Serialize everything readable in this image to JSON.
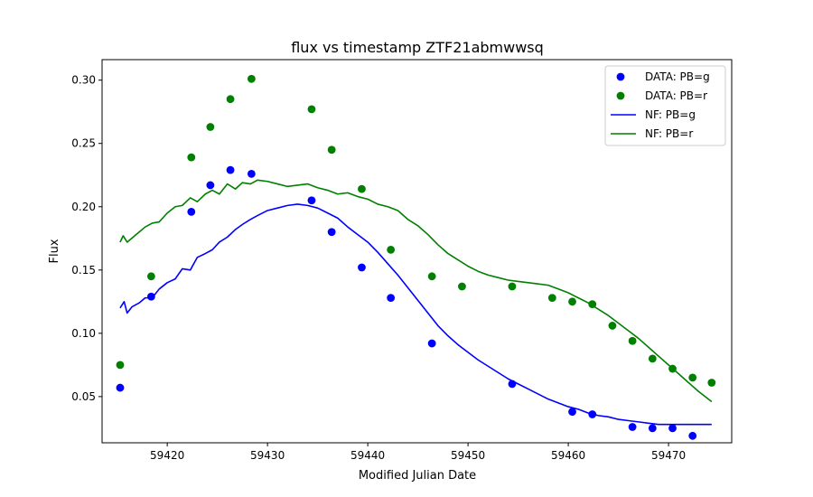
{
  "chart_data": {
    "type": "scatter",
    "title": "flux vs timestamp ZTF21abmwwsq",
    "xlabel": "Modified Julian Date",
    "ylabel": "Flux",
    "xlim": [
      59413.5,
      59476.3
    ],
    "ylim": [
      0.0135,
      0.3162
    ],
    "x_ticks": [
      59420,
      59430,
      59440,
      59450,
      59460,
      59470
    ],
    "y_ticks": [
      0.05,
      0.1,
      0.15,
      0.2,
      0.25,
      0.3
    ],
    "grid": false,
    "legend_position": "top-right",
    "colors": {
      "g": "#0000ff",
      "r": "#008000"
    },
    "legend": [
      {
        "label": "DATA: PB=g",
        "kind": "marker",
        "color": "#0000ff"
      },
      {
        "label": "DATA: PB=r",
        "kind": "marker",
        "color": "#008000"
      },
      {
        "label": "NF: PB=g",
        "kind": "line",
        "color": "#0000ff"
      },
      {
        "label": "NF: PB=r",
        "kind": "line",
        "color": "#008000"
      }
    ],
    "scatter_series": [
      {
        "name": "DATA: PB=g",
        "color": "#0000ff",
        "points": [
          [
            59415.3,
            0.057
          ],
          [
            59418.4,
            0.129
          ],
          [
            59422.4,
            0.196
          ],
          [
            59424.3,
            0.217
          ],
          [
            59426.3,
            0.229
          ],
          [
            59428.4,
            0.226
          ],
          [
            59434.4,
            0.205
          ],
          [
            59436.4,
            0.18
          ],
          [
            59439.4,
            0.152
          ],
          [
            59442.3,
            0.128
          ],
          [
            59446.4,
            0.092
          ],
          [
            59454.4,
            0.06
          ],
          [
            59460.4,
            0.038
          ],
          [
            59462.4,
            0.036
          ],
          [
            59466.4,
            0.026
          ],
          [
            59468.4,
            0.025
          ],
          [
            59470.4,
            0.025
          ],
          [
            59472.4,
            0.019
          ]
        ]
      },
      {
        "name": "DATA: PB=r",
        "color": "#008000",
        "points": [
          [
            59415.3,
            0.075
          ],
          [
            59418.4,
            0.145
          ],
          [
            59422.4,
            0.239
          ],
          [
            59424.3,
            0.263
          ],
          [
            59426.3,
            0.285
          ],
          [
            59428.4,
            0.301
          ],
          [
            59434.4,
            0.277
          ],
          [
            59436.4,
            0.245
          ],
          [
            59439.4,
            0.214
          ],
          [
            59442.3,
            0.166
          ],
          [
            59446.4,
            0.145
          ],
          [
            59449.4,
            0.137
          ],
          [
            59454.4,
            0.137
          ],
          [
            59458.4,
            0.128
          ],
          [
            59460.4,
            0.125
          ],
          [
            59462.4,
            0.123
          ],
          [
            59464.4,
            0.106
          ],
          [
            59466.4,
            0.094
          ],
          [
            59468.4,
            0.08
          ],
          [
            59470.4,
            0.072
          ],
          [
            59472.4,
            0.065
          ],
          [
            59474.3,
            0.061
          ]
        ]
      }
    ],
    "line_series": [
      {
        "name": "NF: PB=g",
        "color": "#0000ff",
        "points": [
          [
            59415.3,
            0.12
          ],
          [
            59415.7,
            0.125
          ],
          [
            59416.0,
            0.116
          ],
          [
            59416.5,
            0.121
          ],
          [
            59417.2,
            0.124
          ],
          [
            59417.8,
            0.128
          ],
          [
            59418.5,
            0.128
          ],
          [
            59419.2,
            0.135
          ],
          [
            59420.0,
            0.14
          ],
          [
            59420.8,
            0.143
          ],
          [
            59421.5,
            0.151
          ],
          [
            59422.3,
            0.15
          ],
          [
            59423.0,
            0.16
          ],
          [
            59423.8,
            0.163
          ],
          [
            59424.5,
            0.166
          ],
          [
            59425.2,
            0.172
          ],
          [
            59426.0,
            0.176
          ],
          [
            59426.8,
            0.182
          ],
          [
            59427.5,
            0.186
          ],
          [
            59428.3,
            0.19
          ],
          [
            59429.0,
            0.193
          ],
          [
            59430.0,
            0.197
          ],
          [
            59431.0,
            0.199
          ],
          [
            59432.0,
            0.201
          ],
          [
            59433.0,
            0.202
          ],
          [
            59434.0,
            0.201
          ],
          [
            59435.0,
            0.199
          ],
          [
            59436.0,
            0.195
          ],
          [
            59437.0,
            0.191
          ],
          [
            59438.0,
            0.184
          ],
          [
            59439.0,
            0.178
          ],
          [
            59440.0,
            0.172
          ],
          [
            59441.0,
            0.164
          ],
          [
            59442.0,
            0.155
          ],
          [
            59443.0,
            0.146
          ],
          [
            59444.0,
            0.136
          ],
          [
            59445.0,
            0.126
          ],
          [
            59446.0,
            0.116
          ],
          [
            59447.0,
            0.106
          ],
          [
            59448.0,
            0.098
          ],
          [
            59449.0,
            0.091
          ],
          [
            59450.0,
            0.085
          ],
          [
            59451.0,
            0.079
          ],
          [
            59452.0,
            0.074
          ],
          [
            59453.0,
            0.069
          ],
          [
            59454.0,
            0.064
          ],
          [
            59455.0,
            0.06
          ],
          [
            59456.0,
            0.056
          ],
          [
            59457.0,
            0.052
          ],
          [
            59458.0,
            0.048
          ],
          [
            59459.0,
            0.045
          ],
          [
            59460.0,
            0.042
          ],
          [
            59461.0,
            0.04
          ],
          [
            59462.0,
            0.037
          ],
          [
            59463.0,
            0.035
          ],
          [
            59464.0,
            0.034
          ],
          [
            59465.0,
            0.032
          ],
          [
            59466.0,
            0.031
          ],
          [
            59467.0,
            0.03
          ],
          [
            59468.0,
            0.029
          ],
          [
            59469.0,
            0.028
          ],
          [
            59470.0,
            0.028
          ],
          [
            59471.0,
            0.028
          ],
          [
            59472.0,
            0.028
          ],
          [
            59473.0,
            0.028
          ],
          [
            59474.3,
            0.028
          ]
        ]
      },
      {
        "name": "NF: PB=r",
        "color": "#008000",
        "points": [
          [
            59415.3,
            0.172
          ],
          [
            59415.6,
            0.177
          ],
          [
            59416.0,
            0.172
          ],
          [
            59416.6,
            0.176
          ],
          [
            59417.2,
            0.18
          ],
          [
            59417.8,
            0.184
          ],
          [
            59418.5,
            0.187
          ],
          [
            59419.2,
            0.188
          ],
          [
            59420.0,
            0.195
          ],
          [
            59420.8,
            0.2
          ],
          [
            59421.5,
            0.201
          ],
          [
            59422.3,
            0.207
          ],
          [
            59423.0,
            0.204
          ],
          [
            59423.8,
            0.21
          ],
          [
            59424.5,
            0.213
          ],
          [
            59425.2,
            0.21
          ],
          [
            59426.0,
            0.218
          ],
          [
            59426.8,
            0.214
          ],
          [
            59427.5,
            0.219
          ],
          [
            59428.3,
            0.218
          ],
          [
            59429.0,
            0.221
          ],
          [
            59430.0,
            0.22
          ],
          [
            59431.0,
            0.218
          ],
          [
            59432.0,
            0.216
          ],
          [
            59433.0,
            0.217
          ],
          [
            59434.0,
            0.218
          ],
          [
            59435.0,
            0.215
          ],
          [
            59436.0,
            0.213
          ],
          [
            59437.0,
            0.21
          ],
          [
            59438.0,
            0.211
          ],
          [
            59439.0,
            0.208
          ],
          [
            59440.0,
            0.206
          ],
          [
            59441.0,
            0.202
          ],
          [
            59442.0,
            0.2
          ],
          [
            59443.0,
            0.197
          ],
          [
            59444.0,
            0.19
          ],
          [
            59445.0,
            0.185
          ],
          [
            59446.0,
            0.178
          ],
          [
            59447.0,
            0.17
          ],
          [
            59448.0,
            0.163
          ],
          [
            59449.0,
            0.158
          ],
          [
            59450.0,
            0.153
          ],
          [
            59451.0,
            0.149
          ],
          [
            59452.0,
            0.146
          ],
          [
            59453.0,
            0.144
          ],
          [
            59454.0,
            0.142
          ],
          [
            59455.0,
            0.141
          ],
          [
            59456.0,
            0.14
          ],
          [
            59457.0,
            0.139
          ],
          [
            59458.0,
            0.138
          ],
          [
            59459.0,
            0.135
          ],
          [
            59460.0,
            0.132
          ],
          [
            59461.0,
            0.128
          ],
          [
            59462.0,
            0.124
          ],
          [
            59463.0,
            0.119
          ],
          [
            59464.0,
            0.114
          ],
          [
            59465.0,
            0.108
          ],
          [
            59466.0,
            0.102
          ],
          [
            59467.0,
            0.096
          ],
          [
            59468.0,
            0.089
          ],
          [
            59469.0,
            0.082
          ],
          [
            59470.0,
            0.075
          ],
          [
            59471.0,
            0.068
          ],
          [
            59472.0,
            0.061
          ],
          [
            59473.0,
            0.054
          ],
          [
            59474.3,
            0.046
          ]
        ]
      }
    ]
  }
}
